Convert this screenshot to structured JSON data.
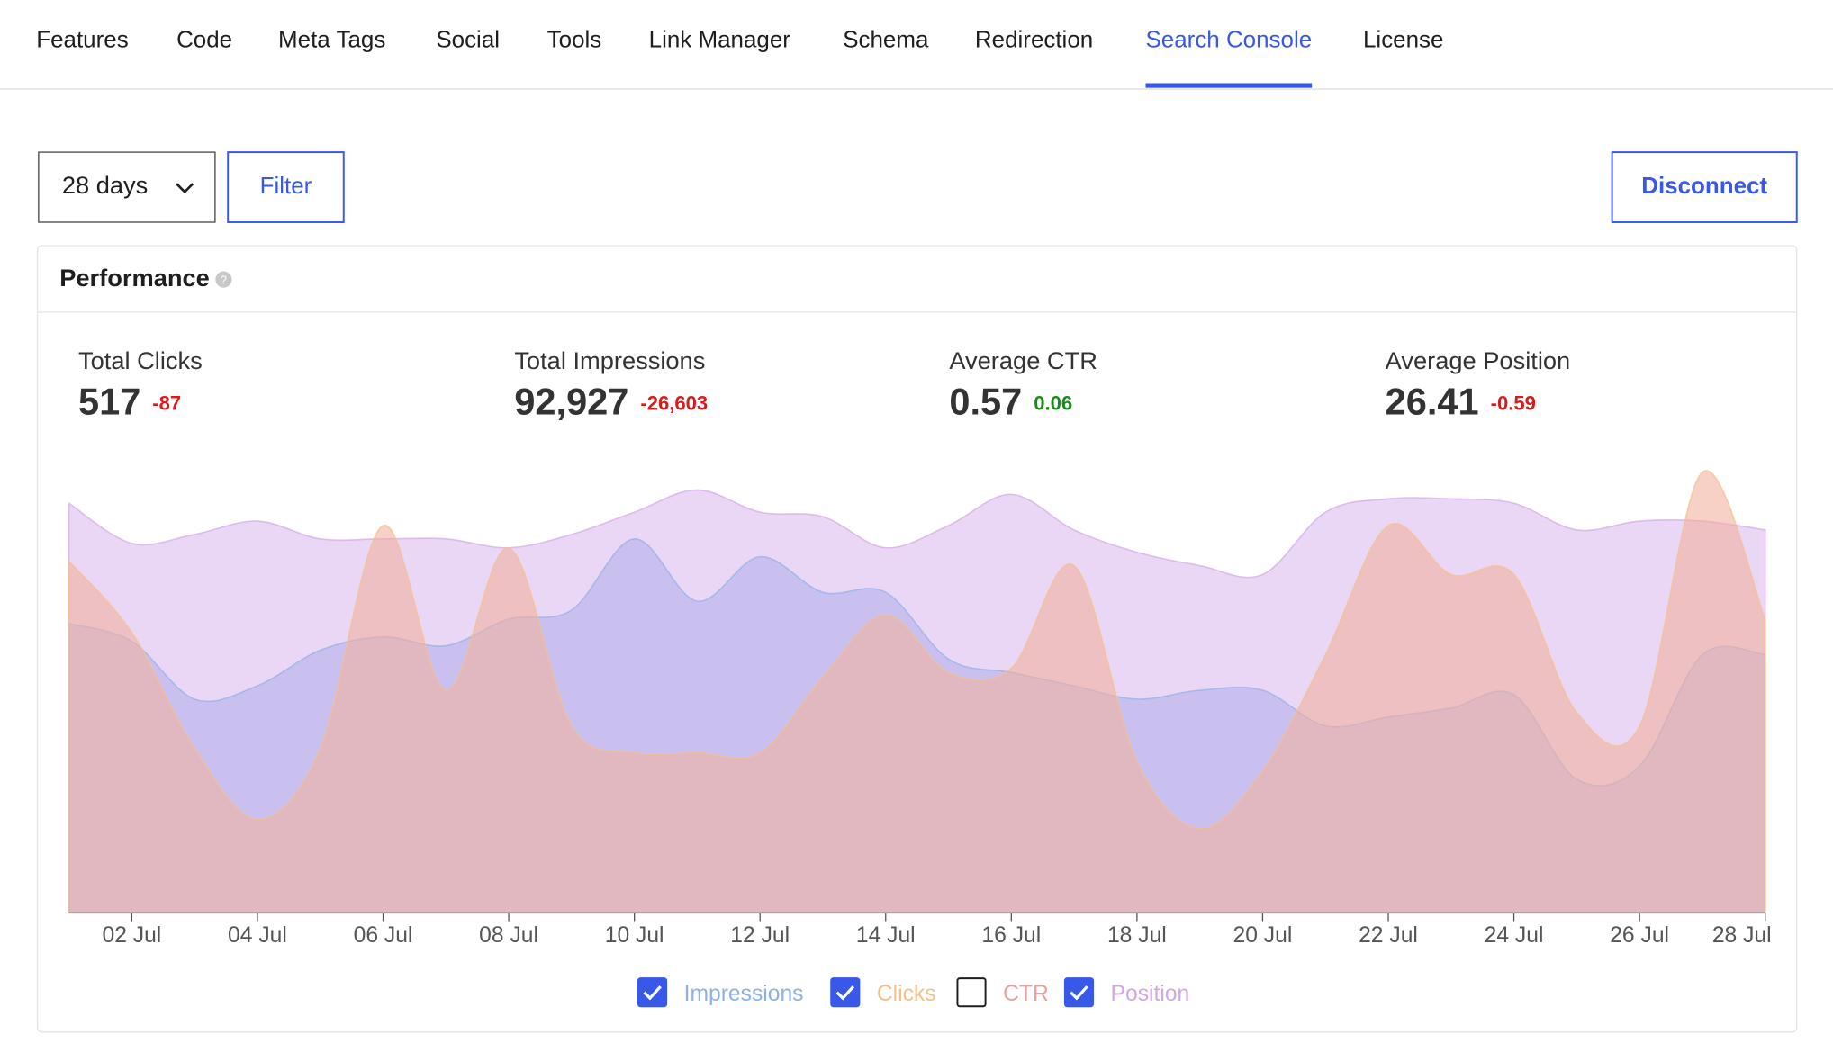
{
  "nav": {
    "tabs": [
      "Features",
      "Code",
      "Meta Tags",
      "Social",
      "Tools",
      "Link Manager",
      "Schema",
      "Redirection",
      "Search Console",
      "License"
    ],
    "active": 8
  },
  "toolbar": {
    "range": "28 days",
    "filter": "Filter",
    "disconnect": "Disconnect"
  },
  "card": {
    "title": "Performance"
  },
  "stats": [
    {
      "label": "Total Clicks",
      "value": "517",
      "change": "-87",
      "trend": "down"
    },
    {
      "label": "Total Impressions",
      "value": "92,927",
      "change": "-26,603",
      "trend": "down"
    },
    {
      "label": "Average CTR",
      "value": "0.57",
      "change": "0.06",
      "trend": "up"
    },
    {
      "label": "Average Position",
      "value": "26.41",
      "change": "-0.59",
      "trend": "down"
    }
  ],
  "chart_data": {
    "type": "area",
    "ylim": [
      0,
      100
    ],
    "categories": [
      null,
      "02 Jul",
      null,
      "04 Jul",
      null,
      "06 Jul",
      null,
      "08 Jul",
      null,
      "10 Jul",
      null,
      "12 Jul",
      null,
      "14 Jul",
      null,
      "16 Jul",
      null,
      "18 Jul",
      null,
      "20 Jul",
      null,
      "22 Jul",
      null,
      "24 Jul",
      null,
      "26 Jul",
      null,
      "28 Jul"
    ],
    "series": [
      {
        "name": "Impressions",
        "color": "#8fb0e8",
        "fill": "#b3b0ec",
        "checked": true,
        "values": [
          65,
          61,
          48,
          51,
          59,
          62,
          60,
          66,
          68,
          84,
          70,
          80,
          72,
          72,
          57,
          54,
          51,
          48,
          50,
          50,
          42,
          44,
          46,
          49,
          30,
          33,
          58,
          58
        ]
      },
      {
        "name": "Clicks",
        "color": "#f5c08a",
        "fill": "#f2b0a0",
        "checked": true,
        "values": [
          79,
          63,
          37,
          21,
          37,
          87,
          50,
          82,
          42,
          36,
          36,
          36,
          53,
          67,
          54,
          55,
          78,
          34,
          19,
          32,
          58,
          87,
          76,
          76,
          45,
          42,
          99,
          66
        ]
      },
      {
        "name": "CTR",
        "color": "#e8a0a0",
        "fill": "#e8a0a0",
        "checked": false,
        "values": [
          null,
          null,
          null,
          null,
          null,
          null,
          null,
          null,
          null,
          null,
          null,
          null,
          null,
          null,
          null,
          null,
          null,
          null,
          null,
          null,
          null,
          null,
          null,
          null,
          null,
          null,
          null,
          null
        ]
      },
      {
        "name": "Position",
        "color": "#d4a6e6",
        "fill": "#dcbcee",
        "checked": true,
        "values": [
          92,
          83,
          85,
          88,
          84,
          84,
          84,
          82,
          85,
          90,
          95,
          90,
          89,
          82,
          87,
          94,
          86,
          81,
          78,
          76,
          90,
          93,
          93,
          92,
          86,
          88,
          88,
          86
        ]
      }
    ]
  }
}
